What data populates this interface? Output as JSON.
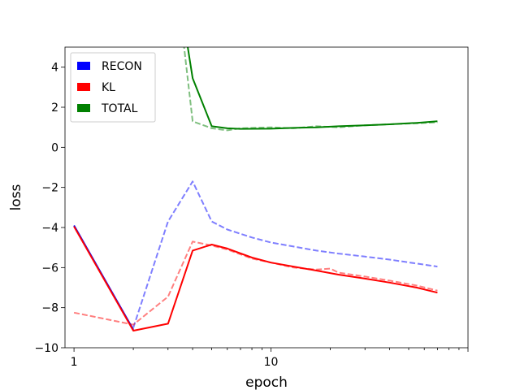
{
  "chart_data": {
    "type": "line",
    "xlabel": "epoch",
    "ylabel": "loss",
    "xscale": "log",
    "xlim": [
      0.9,
      100
    ],
    "ylim": [
      -10,
      5
    ],
    "x_tick_labels": [
      {
        "value": 1,
        "label": "1"
      },
      {
        "value": 10,
        "label": "10"
      }
    ],
    "y_ticks": [
      -10,
      -8,
      -6,
      -4,
      -2,
      0,
      2,
      4
    ],
    "grid": false,
    "legend": {
      "placement": "top-left",
      "entries": [
        {
          "name": "RECON",
          "color": "#0000ff"
        },
        {
          "name": "KL",
          "color": "#ff0000"
        },
        {
          "name": "TOTAL",
          "color": "#008000"
        }
      ]
    },
    "series": [
      {
        "name": "RECON",
        "style": "dashed",
        "color": "#0000ff",
        "opacity": 0.5,
        "x": [
          2,
          3,
          4,
          5,
          6,
          8,
          10,
          13,
          17,
          22,
          30,
          40,
          55,
          70
        ],
        "y": [
          -9.0,
          -3.7,
          -1.7,
          -3.7,
          -4.1,
          -4.5,
          -4.75,
          -4.95,
          -5.15,
          -5.3,
          -5.45,
          -5.6,
          -5.8,
          -5.95
        ]
      },
      {
        "name": "KL",
        "style": "dashed",
        "color": "#ff0000",
        "opacity": 0.5,
        "x": [
          1,
          2,
          3,
          4,
          5,
          6,
          8,
          10,
          13,
          17,
          20,
          22,
          30,
          40,
          55,
          70
        ],
        "y": [
          -8.25,
          -8.85,
          -7.45,
          -4.7,
          -4.9,
          -5.1,
          -5.55,
          -5.75,
          -6.0,
          -6.1,
          -6.05,
          -6.25,
          -6.45,
          -6.65,
          -6.9,
          -7.15
        ]
      },
      {
        "name": "TOTAL",
        "style": "dashed",
        "color": "#008000",
        "opacity": 0.5,
        "x": [
          3.6,
          4,
          5,
          6,
          7,
          10,
          13,
          17,
          22,
          30,
          40,
          55,
          70
        ],
        "y": [
          5.2,
          1.3,
          0.95,
          0.85,
          0.95,
          1.0,
          0.95,
          1.05,
          1.0,
          1.1,
          1.15,
          1.2,
          1.25
        ]
      },
      {
        "name": "RECON",
        "style": "solid",
        "color": "#0000ff",
        "opacity": 1,
        "x": [
          1,
          2
        ],
        "y": [
          -3.9,
          -9.1
        ]
      },
      {
        "name": "KL",
        "style": "solid",
        "color": "#ff0000",
        "opacity": 1,
        "x": [
          1,
          2,
          3,
          4,
          5,
          6,
          8,
          10,
          13,
          17,
          22,
          30,
          40,
          55,
          70
        ],
        "y": [
          -3.95,
          -9.15,
          -8.8,
          -5.15,
          -4.85,
          -5.05,
          -5.5,
          -5.75,
          -5.95,
          -6.15,
          -6.35,
          -6.55,
          -6.75,
          -7.0,
          -7.25
        ]
      },
      {
        "name": "TOTAL",
        "style": "solid",
        "color": "#008000",
        "opacity": 1,
        "x": [
          3.75,
          4,
          5,
          6,
          7,
          10,
          13,
          17,
          22,
          30,
          40,
          55,
          70
        ],
        "y": [
          5.2,
          3.45,
          1.05,
          0.95,
          0.92,
          0.93,
          0.97,
          1.0,
          1.05,
          1.1,
          1.15,
          1.22,
          1.3
        ]
      }
    ]
  }
}
